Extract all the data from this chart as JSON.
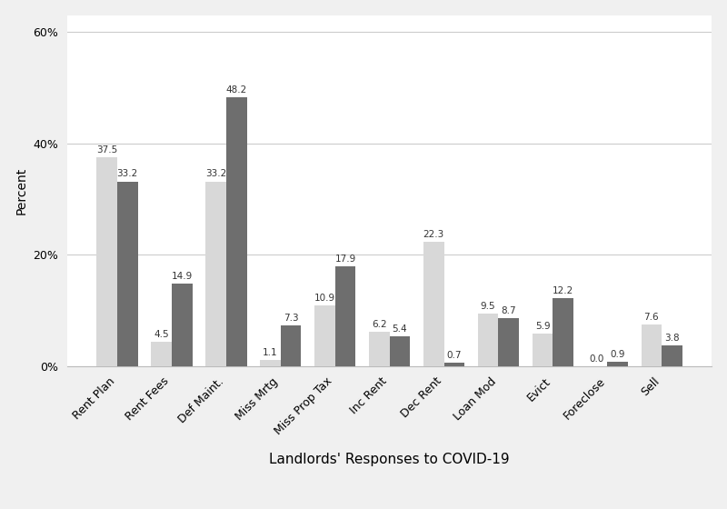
{
  "categories": [
    "Rent Plan",
    "Rent Fees",
    "Def Maint.",
    "Miss Mrtg",
    "Miss Prop Tax",
    "Inc Rent",
    "Dec Rent",
    "Loan Mod",
    "Evict",
    "Foreclose",
    "Sell"
  ],
  "below_median": [
    37.5,
    4.5,
    33.2,
    1.1,
    10.9,
    6.2,
    22.3,
    9.5,
    5.9,
    0.0,
    7.6
  ],
  "above_median": [
    33.2,
    14.9,
    48.2,
    7.3,
    17.9,
    5.4,
    0.7,
    8.7,
    12.2,
    0.9,
    3.8
  ],
  "below_color": "#d8d8d8",
  "above_color": "#6e6e6e",
  "xlabel": "Landlords' Responses to COVID-19",
  "ylabel": "Percent",
  "ylim": [
    0,
    63
  ],
  "yticks": [
    0,
    20,
    40,
    60
  ],
  "ytick_labels": [
    "0%",
    "20%",
    "40%",
    "60%"
  ],
  "bar_width": 0.38,
  "xlabel_fontsize": 11,
  "ylabel_fontsize": 10,
  "tick_fontsize": 9,
  "value_fontsize": 7.5,
  "plot_bg_color": "#ffffff",
  "fig_bg_color": "#f0f0f0",
  "grid_color": "#cccccc"
}
